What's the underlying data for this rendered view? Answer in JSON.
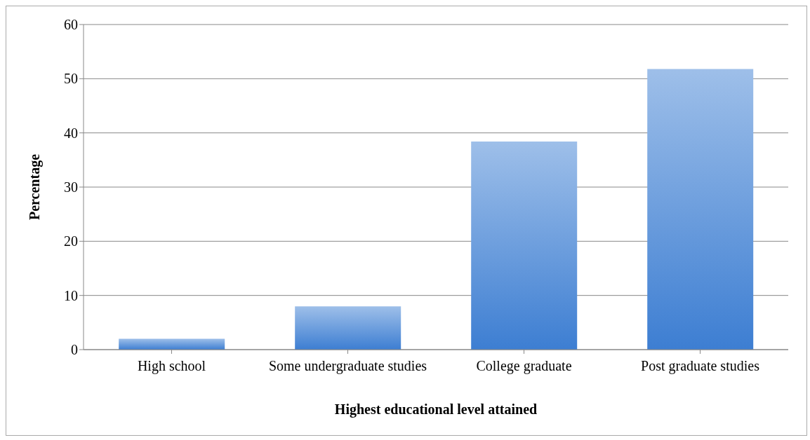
{
  "chart_data": {
    "type": "bar",
    "xlabel": "Highest educational level attained",
    "ylabel": "Percentage",
    "categories": [
      "High school",
      "Some undergraduate studies",
      "College graduate",
      "Post graduate studies"
    ],
    "values": [
      2,
      8,
      38.4,
      51.8
    ],
    "color": "#3d7ed2",
    "ylim": [
      0,
      60
    ],
    "yticks": [
      0,
      10,
      20,
      30,
      40,
      50,
      60
    ],
    "grid": "y"
  }
}
